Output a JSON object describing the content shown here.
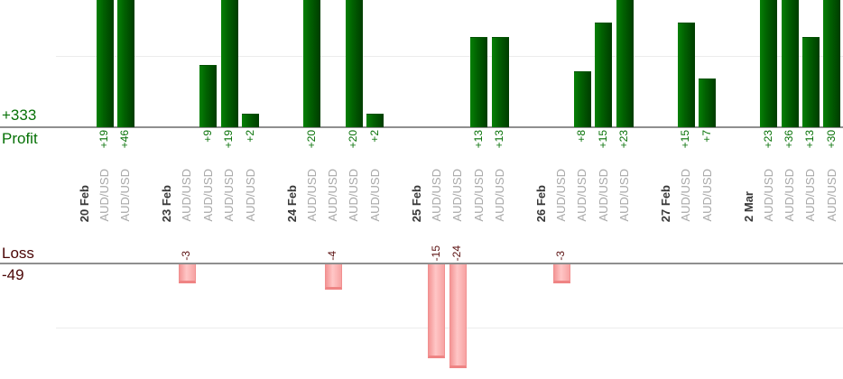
{
  "chart_data": {
    "type": "bar",
    "layout": {
      "description": "dual horizontal baselines: profit bars grow upward from upper axis (clipped at image top), loss bars grow downward from lower axis (clipped near image bottom)",
      "legend_position": "left of each baseline",
      "grid": "one faint gridline per pane, at +10 above profit axis and -10 below loss axis (unlabeled, estimated)"
    },
    "profit_axis": {
      "label": "Profit",
      "total": "+333"
    },
    "loss_axis": {
      "label": "Loss",
      "total": "-49"
    },
    "colors": {
      "profit_text": "#067106",
      "loss_summary_text": "#4a0505",
      "loss_value_text": "#5c1212",
      "profit_bar_gradient": [
        "#068006",
        "#016101",
        "#003c00"
      ],
      "loss_bar_gradient": [
        "#f39595",
        "#ffc6c6",
        "#f7a3a3"
      ],
      "axis_line": "#8f8f8f",
      "gridline": "#ececec",
      "date_text": "#383838",
      "instrument_text": "#a8a8a8"
    },
    "groups": [
      {
        "date": "20 Feb",
        "trades": [
          {
            "instrument": "AUD/USD",
            "value": 19,
            "label": "+19"
          },
          {
            "instrument": "AUD/USD",
            "value": 46,
            "label": "+46"
          }
        ]
      },
      {
        "date": "23 Feb",
        "trades": [
          {
            "instrument": "AUD/USD",
            "value": -3,
            "label": "-3"
          },
          {
            "instrument": "AUD/USD",
            "value": 9,
            "label": "+9"
          },
          {
            "instrument": "AUD/USD",
            "value": 19,
            "label": "+19"
          },
          {
            "instrument": "AUD/USD",
            "value": 2,
            "label": "+2"
          }
        ]
      },
      {
        "date": "24 Feb",
        "trades": [
          {
            "instrument": "AUD/USD",
            "value": 20,
            "label": "+20"
          },
          {
            "instrument": "AUD/USD",
            "value": -4,
            "label": "-4"
          },
          {
            "instrument": "AUD/USD",
            "value": 20,
            "label": "+20"
          },
          {
            "instrument": "AUD/USD",
            "value": 2,
            "label": "+2"
          }
        ]
      },
      {
        "date": "25 Feb",
        "trades": [
          {
            "instrument": "AUD/USD",
            "value": -15,
            "label": "-15"
          },
          {
            "instrument": "AUD/USD",
            "value": -24,
            "label": "-24"
          },
          {
            "instrument": "AUD/USD",
            "value": 13,
            "label": "+13"
          },
          {
            "instrument": "AUD/USD",
            "value": 13,
            "label": "+13"
          }
        ]
      },
      {
        "date": "26 Feb",
        "trades": [
          {
            "instrument": "AUD/USD",
            "value": -3,
            "label": "-3"
          },
          {
            "instrument": "AUD/USD",
            "value": 8,
            "label": "+8"
          },
          {
            "instrument": "AUD/USD",
            "value": 15,
            "label": "+15"
          },
          {
            "instrument": "AUD/USD",
            "value": 23,
            "label": "+23"
          }
        ]
      },
      {
        "date": "27 Feb",
        "trades": [
          {
            "instrument": "AUD/USD",
            "value": 15,
            "label": "+15"
          },
          {
            "instrument": "AUD/USD",
            "value": 7,
            "label": "+7"
          }
        ]
      },
      {
        "date": "2 Mar",
        "trades": [
          {
            "instrument": "AUD/USD",
            "value": 23,
            "label": "+23"
          },
          {
            "instrument": "AUD/USD",
            "value": 36,
            "label": "+36"
          },
          {
            "instrument": "AUD/USD",
            "value": 13,
            "label": "+13"
          },
          {
            "instrument": "AUD/USD",
            "value": 30,
            "label": "+30"
          }
        ]
      }
    ]
  }
}
